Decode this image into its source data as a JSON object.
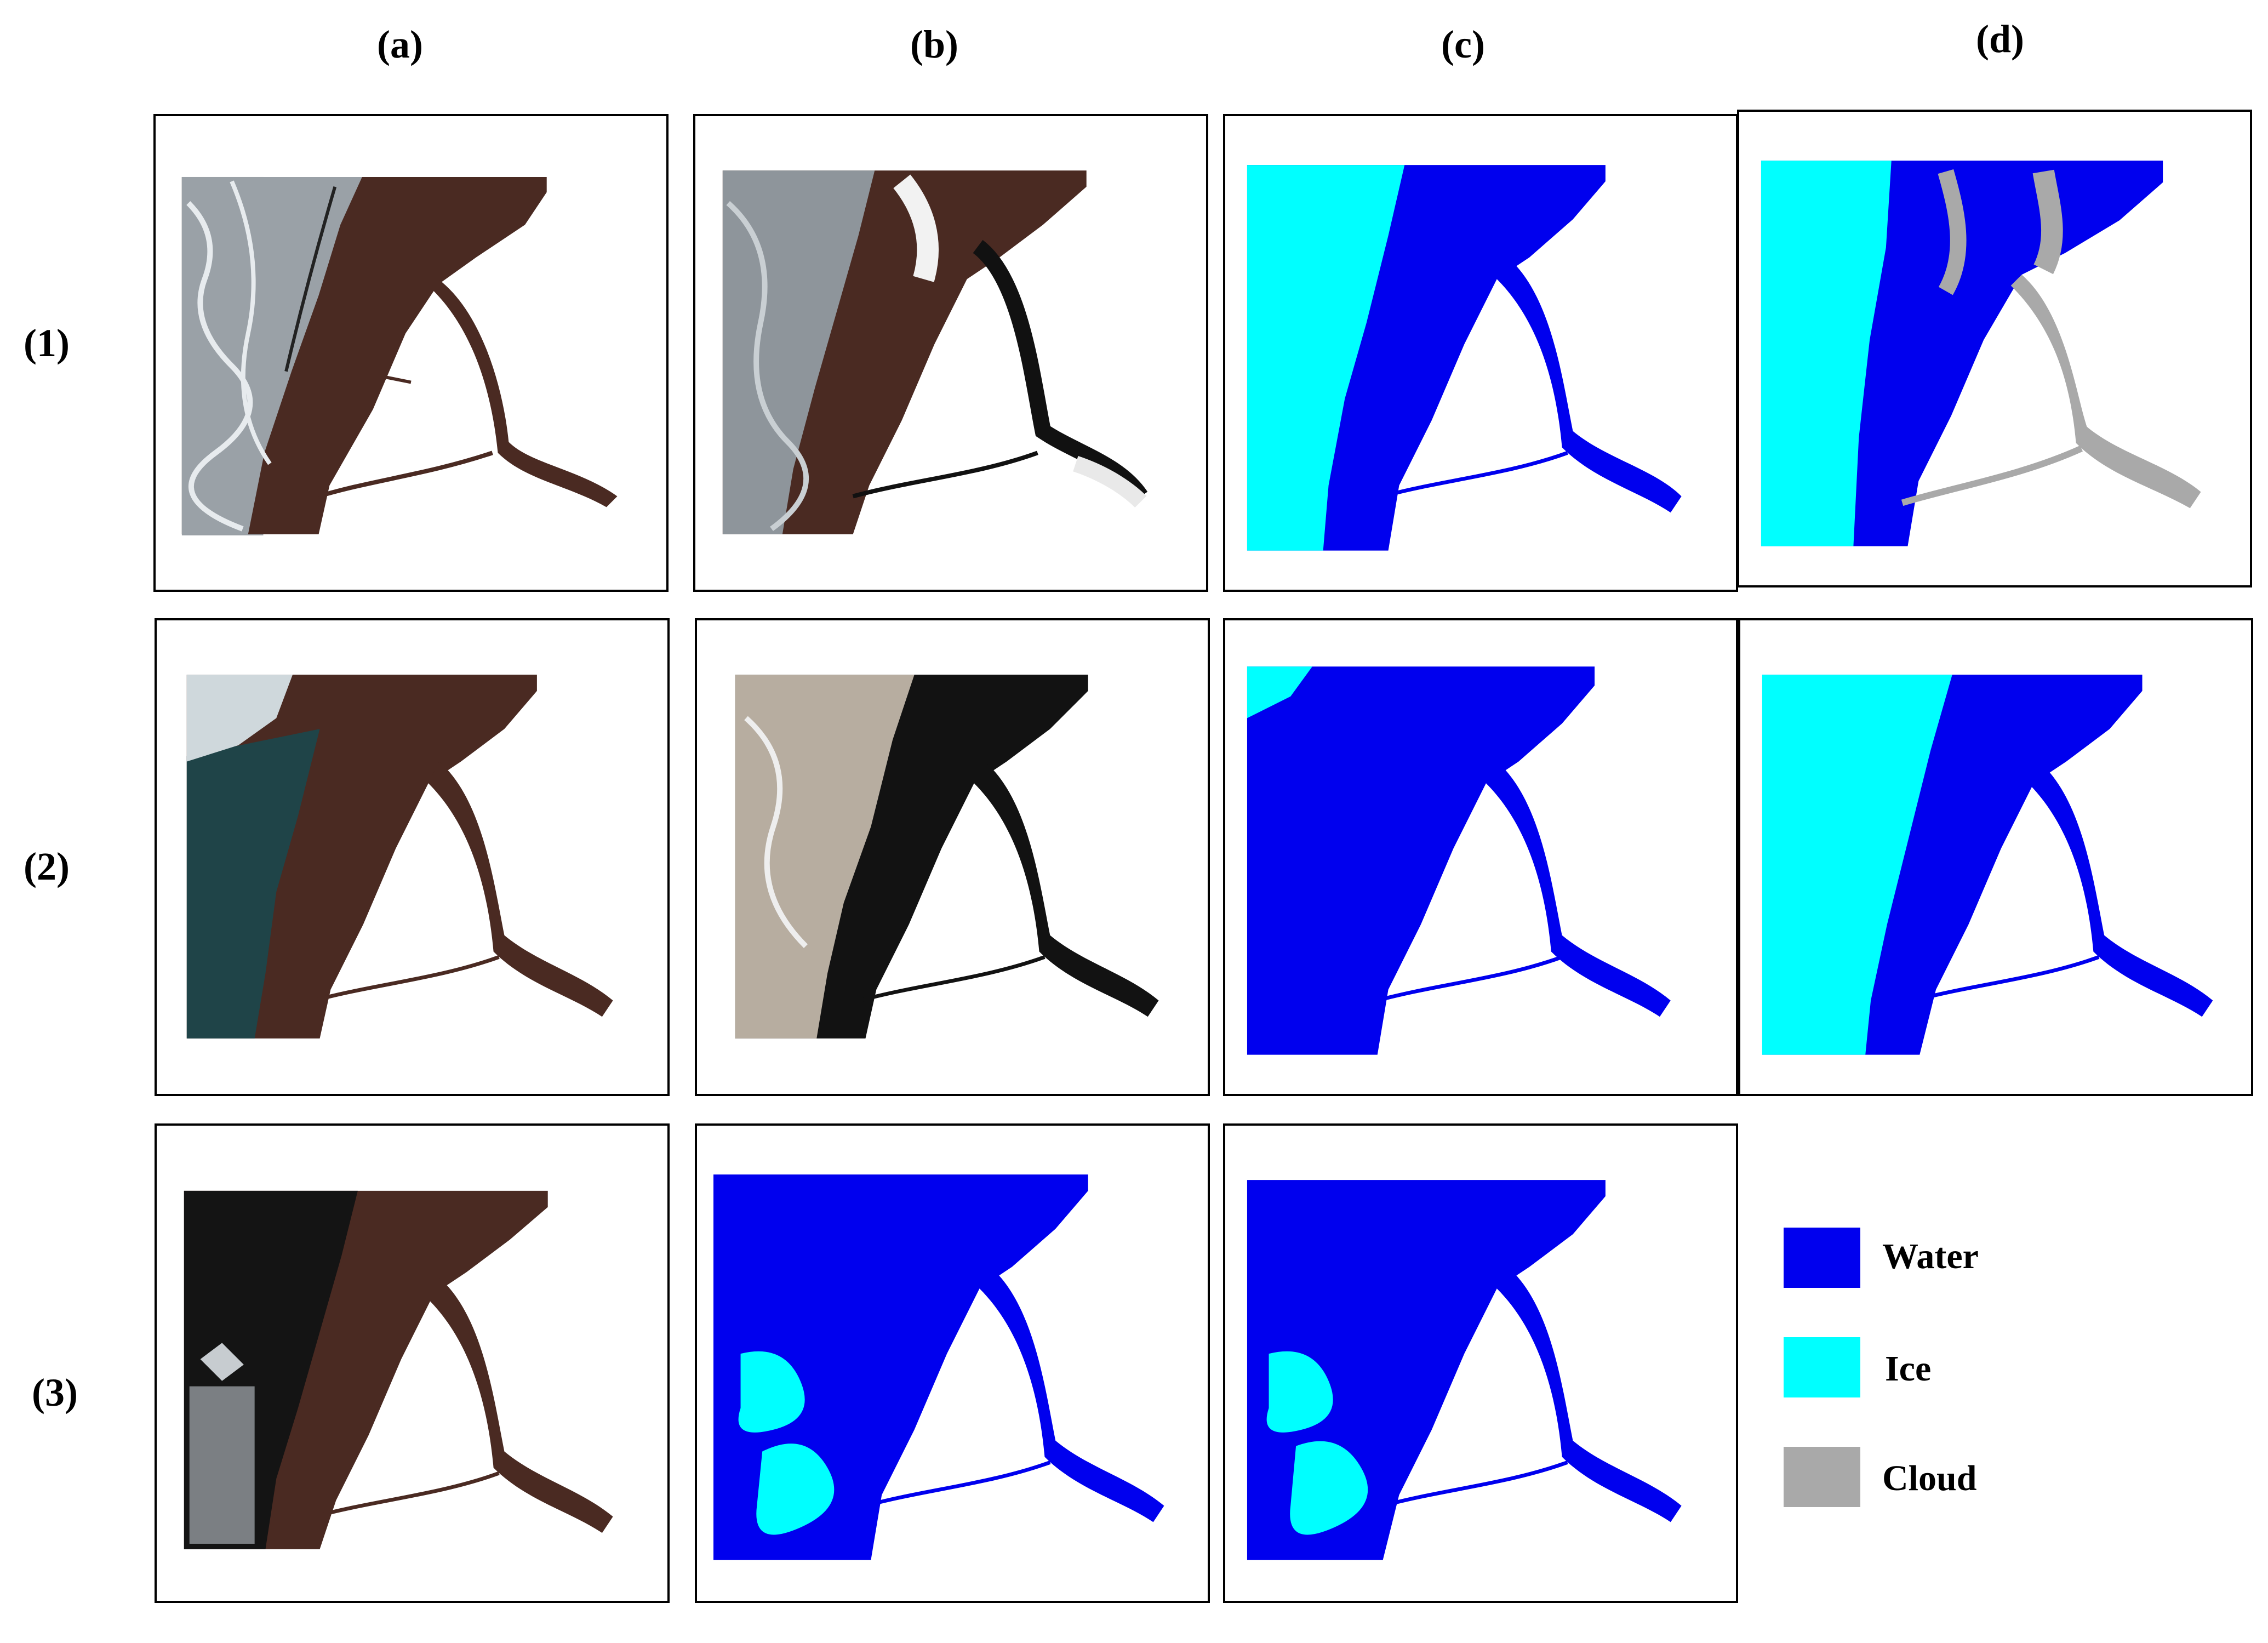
{
  "columns": [
    "(a)",
    "(b)",
    "(c)",
    "(d)"
  ],
  "rows": [
    "(1)",
    "(2)",
    "(3)"
  ],
  "legend": {
    "water": {
      "label": "Water",
      "color": "#0000ee"
    },
    "ice": {
      "label": "Ice",
      "color": "#00ffff"
    },
    "cloud": {
      "label": "Cloud",
      "color": "#a9a9a9"
    }
  },
  "colors": {
    "water_dark": "#4a2a22",
    "ice_gray": "#8e959b",
    "ice_white": "#e7ebee",
    "sea_teal": "#1f4448",
    "black_water": "#121212",
    "sand_ice": "#b7ada0"
  }
}
